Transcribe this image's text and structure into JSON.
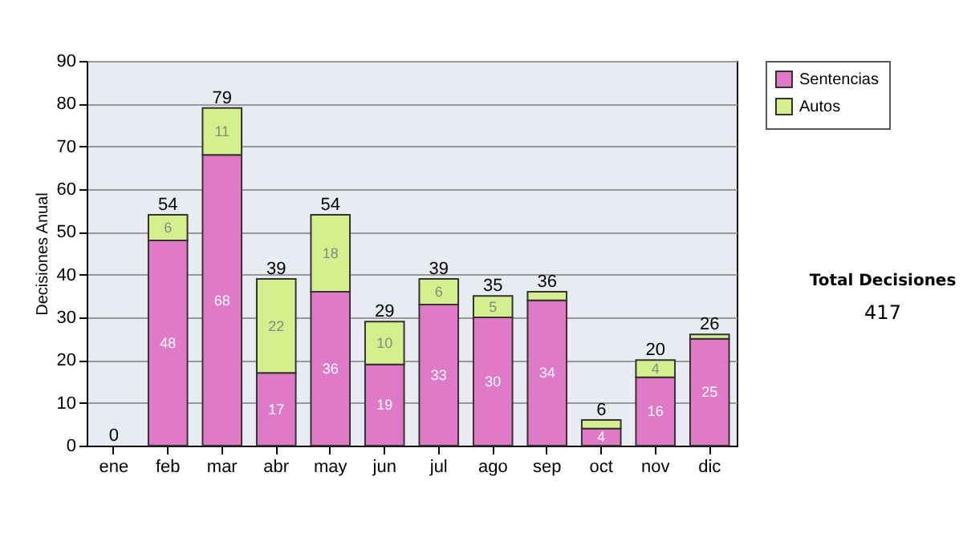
{
  "chart_data": {
    "type": "bar",
    "stacked": true,
    "ylabel": "Decisiones Anual",
    "categories": [
      "ene",
      "feb",
      "mar",
      "abr",
      "may",
      "jun",
      "jul",
      "ago",
      "sep",
      "oct",
      "nov",
      "dic"
    ],
    "series": [
      {
        "name": "Sentencias",
        "color": "#e07ac8",
        "values": [
          0,
          48,
          68,
          17,
          36,
          19,
          33,
          30,
          34,
          4,
          16,
          25
        ],
        "value_labels": [
          null,
          "48",
          "68",
          "17",
          "36",
          "19",
          "33",
          "30",
          "34",
          "4",
          "16",
          "25"
        ]
      },
      {
        "name": "Autos",
        "color": "#d4f08c",
        "values": [
          0,
          6,
          11,
          22,
          18,
          10,
          6,
          5,
          2,
          2,
          4,
          1
        ],
        "value_labels": [
          null,
          "6",
          "11",
          "22",
          "18",
          "10",
          "6",
          "5",
          null,
          null,
          "4",
          null
        ]
      }
    ],
    "totals": [
      "0",
      "54",
      "79",
      "39",
      "54",
      "29",
      "39",
      "35",
      "36",
      "6",
      "20",
      "26"
    ],
    "ylim": [
      0,
      90
    ],
    "yticks": [
      0,
      10,
      20,
      30,
      40,
      50,
      60,
      70,
      80,
      90
    ],
    "grid": "y",
    "legend": "right",
    "annotations": [
      "Total Decisiones",
      "417"
    ]
  }
}
